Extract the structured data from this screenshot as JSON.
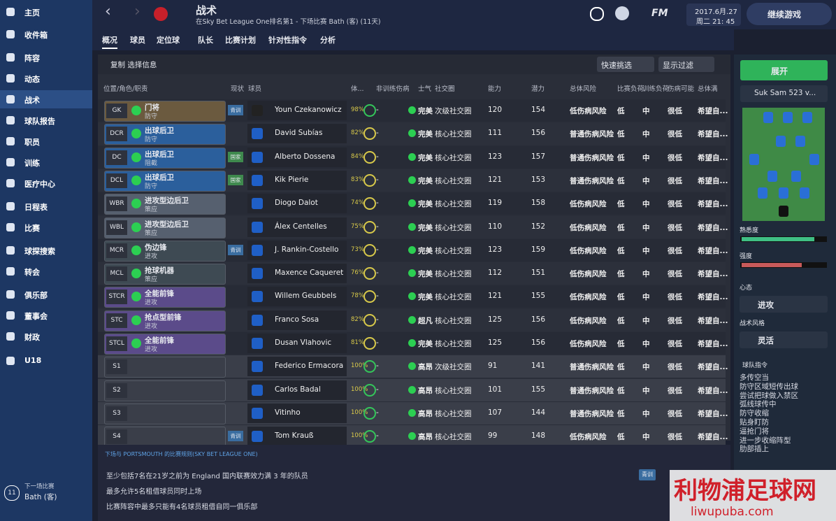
{
  "sidebar": {
    "items": [
      "主页",
      "收件箱",
      "阵容",
      "动态",
      "战术",
      "球队报告",
      "职员",
      "训练",
      "医疗中心",
      "日程表",
      "比赛",
      "球探搜索",
      "转会",
      "俱乐部",
      "董事会",
      "财政",
      "U18"
    ],
    "next_label": "下一场比赛",
    "next_match": "Bath (客)",
    "next_days": "11"
  },
  "header": {
    "title": "战术",
    "subtitle": "在Sky Bet League One排名第1 - 下场比赛 Bath (客) (11天)",
    "date": "2017.6月.27",
    "time": "周二 21: 45",
    "continue": "继续游戏",
    "fm": "FM"
  },
  "tabs": [
    "概况",
    "球员",
    "定位球",
    "队长",
    "比赛计划",
    "针对性指令",
    "分析"
  ],
  "toolbar": {
    "copy": "复制 选择信息",
    "quick_pick": "快速挑选",
    "filter": "显示过滤"
  },
  "table": {
    "headers": [
      "位置/角色/职责",
      "现状",
      "球员",
      "体...",
      "非训练伤病",
      "士气",
      "社交圈",
      "能力",
      "潜力",
      "总体风险",
      "比赛负荷",
      "训练负荷",
      "伤病可能",
      "总体满"
    ],
    "rows": [
      {
        "pos": "GK",
        "role": "门将",
        "duty": "防守",
        "status": "青训",
        "name": "Youn Czekanowicz",
        "fitness": "98%",
        "injury": "-",
        "morale": "完美",
        "social": "次级社交圈",
        "ability": "120",
        "potential": "154",
        "risk": "低伤病风险",
        "match_load": "低",
        "training_load": "中",
        "injury_chance": "很低",
        "satisfaction": "希望自..."
      },
      {
        "pos": "DCR",
        "role": "出球后卫",
        "duty": "防守",
        "name": "David Subías",
        "fitness": "82%",
        "injury": "-",
        "morale": "完美",
        "social": "核心社交圈",
        "ability": "111",
        "potential": "156",
        "risk": "普通伤病风险",
        "match_load": "低",
        "training_load": "中",
        "injury_chance": "很低",
        "satisfaction": "希望自..."
      },
      {
        "pos": "DC",
        "role": "出球后卫",
        "duty": "阻截",
        "status": "国家",
        "name": "Alberto Dossena",
        "fitness": "84%",
        "injury": "-",
        "morale": "完美",
        "social": "核心社交圈",
        "ability": "123",
        "potential": "157",
        "risk": "普通伤病风险",
        "match_load": "低",
        "training_load": "中",
        "injury_chance": "很低",
        "satisfaction": "希望自..."
      },
      {
        "pos": "DCL",
        "role": "出球后卫",
        "duty": "防守",
        "status": "国家",
        "name": "Kik Pierie",
        "fitness": "83%",
        "injury": "-",
        "morale": "完美",
        "social": "核心社交圈",
        "ability": "121",
        "potential": "153",
        "risk": "普通伤病风险",
        "match_load": "低",
        "training_load": "中",
        "injury_chance": "很低",
        "satisfaction": "希望自..."
      },
      {
        "pos": "WBR",
        "role": "进攻型边后卫",
        "duty": "策应",
        "name": "Diogo Dalot",
        "fitness": "74%",
        "injury": "-",
        "morale": "完美",
        "social": "核心社交圈",
        "ability": "119",
        "potential": "158",
        "risk": "低伤病风险",
        "match_load": "低",
        "training_load": "中",
        "injury_chance": "很低",
        "satisfaction": "希望自..."
      },
      {
        "pos": "WBL",
        "role": "进攻型边后卫",
        "duty": "策应",
        "name": "Álex Centelles",
        "fitness": "75%",
        "injury": "-",
        "morale": "完美",
        "social": "核心社交圈",
        "ability": "110",
        "potential": "152",
        "risk": "低伤病风险",
        "match_load": "低",
        "training_load": "中",
        "injury_chance": "很低",
        "satisfaction": "希望自..."
      },
      {
        "pos": "MCR",
        "role": "伪边锋",
        "duty": "进攻",
        "status": "青训",
        "name": "J. Rankin-Costello",
        "fitness": "73%",
        "injury": "-",
        "morale": "完美",
        "social": "核心社交圈",
        "ability": "123",
        "potential": "159",
        "risk": "低伤病风险",
        "match_load": "低",
        "training_load": "中",
        "injury_chance": "很低",
        "satisfaction": "希望自..."
      },
      {
        "pos": "MCL",
        "role": "抢球机器",
        "duty": "策应",
        "name": "Maxence Caqueret",
        "fitness": "76%",
        "injury": "-",
        "morale": "完美",
        "social": "核心社交圈",
        "ability": "112",
        "potential": "151",
        "risk": "低伤病风险",
        "match_load": "低",
        "training_load": "中",
        "injury_chance": "很低",
        "satisfaction": "希望自..."
      },
      {
        "pos": "STCR",
        "role": "全能前锋",
        "duty": "进攻",
        "name": "Willem Geubbels",
        "fitness": "78%",
        "injury": "-",
        "morale": "完美",
        "social": "核心社交圈",
        "ability": "121",
        "potential": "155",
        "risk": "低伤病风险",
        "match_load": "低",
        "training_load": "中",
        "injury_chance": "很低",
        "satisfaction": "希望自..."
      },
      {
        "pos": "STC",
        "role": "抢点型前锋",
        "duty": "进攻",
        "name": "Franco Sosa",
        "fitness": "82%",
        "injury": "-",
        "morale": "超凡",
        "social": "核心社交圈",
        "ability": "125",
        "potential": "156",
        "risk": "低伤病风险",
        "match_load": "低",
        "training_load": "中",
        "injury_chance": "很低",
        "satisfaction": "希望自..."
      },
      {
        "pos": "STCL",
        "role": "全能前锋",
        "duty": "进攻",
        "name": "Dusan Vlahovic",
        "fitness": "81%",
        "injury": "-",
        "morale": "完美",
        "social": "核心社交圈",
        "ability": "125",
        "potential": "156",
        "risk": "低伤病风险",
        "match_load": "低",
        "training_load": "中",
        "injury_chance": "很低",
        "satisfaction": "希望自..."
      },
      {
        "pos": "S1",
        "name": "Federico Ermacora",
        "fitness": "100%",
        "injury": "-",
        "morale": "高昂",
        "social": "次级社交圈",
        "ability": "91",
        "potential": "141",
        "risk": "普通伤病风险",
        "match_load": "低",
        "training_load": "中",
        "injury_chance": "很低",
        "satisfaction": "希望自..."
      },
      {
        "pos": "S2",
        "name": "Carlos Badal",
        "fitness": "100%",
        "injury": "-",
        "morale": "高昂",
        "social": "核心社交圈",
        "ability": "101",
        "potential": "155",
        "risk": "普通伤病风险",
        "match_load": "低",
        "training_load": "中",
        "injury_chance": "很低",
        "satisfaction": "希望自..."
      },
      {
        "pos": "S3",
        "name": "Vitinho",
        "fitness": "100%",
        "injury": "-",
        "morale": "高昂",
        "social": "核心社交圈",
        "ability": "107",
        "potential": "144",
        "risk": "普通伤病风险",
        "match_load": "低",
        "training_load": "中",
        "injury_chance": "很低",
        "satisfaction": "希望自..."
      },
      {
        "pos": "S4",
        "status": "青训",
        "name": "Tom Krauß",
        "fitness": "100%",
        "injury": "-",
        "morale": "高昂",
        "social": "核心社交圈",
        "ability": "99",
        "potential": "148",
        "risk": "低伤病风险",
        "match_load": "低",
        "training_load": "中",
        "injury_chance": "很低",
        "satisfaction": "希望自..."
      }
    ]
  },
  "rules": {
    "title": "下场与 PORTSMOUTH 的比赛规则(SKY BET LEAGUE ONE)",
    "items": [
      "至少包括7名在21岁之前为 England 国内联赛效力满 3 年的队员",
      "最多允许5名租借球员同时上场",
      "比赛阵容中最多只能有4名球员租借自同一俱乐部"
    ],
    "badge": "青训"
  },
  "side_panel": {
    "expand": "展开",
    "formation": "Suk Sam 523 v...",
    "familiarity": "熟悉度",
    "intensity": "强度",
    "mentality_label": "心态",
    "mentality": "进攻",
    "style_label": "战术风格",
    "style": "灵活",
    "instructions_label": "球队指令",
    "instructions": [
      "多传空当",
      "防守区域短传出球",
      "尝试把球做入禁区",
      "弧线球传中",
      "防守收缩",
      "贴身盯防",
      "逼抢门将",
      "进一步收缩阵型",
      "肋部插上"
    ]
  },
  "watermark": {
    "cn": "利物浦足球网",
    "url": "liwupuba.com"
  }
}
